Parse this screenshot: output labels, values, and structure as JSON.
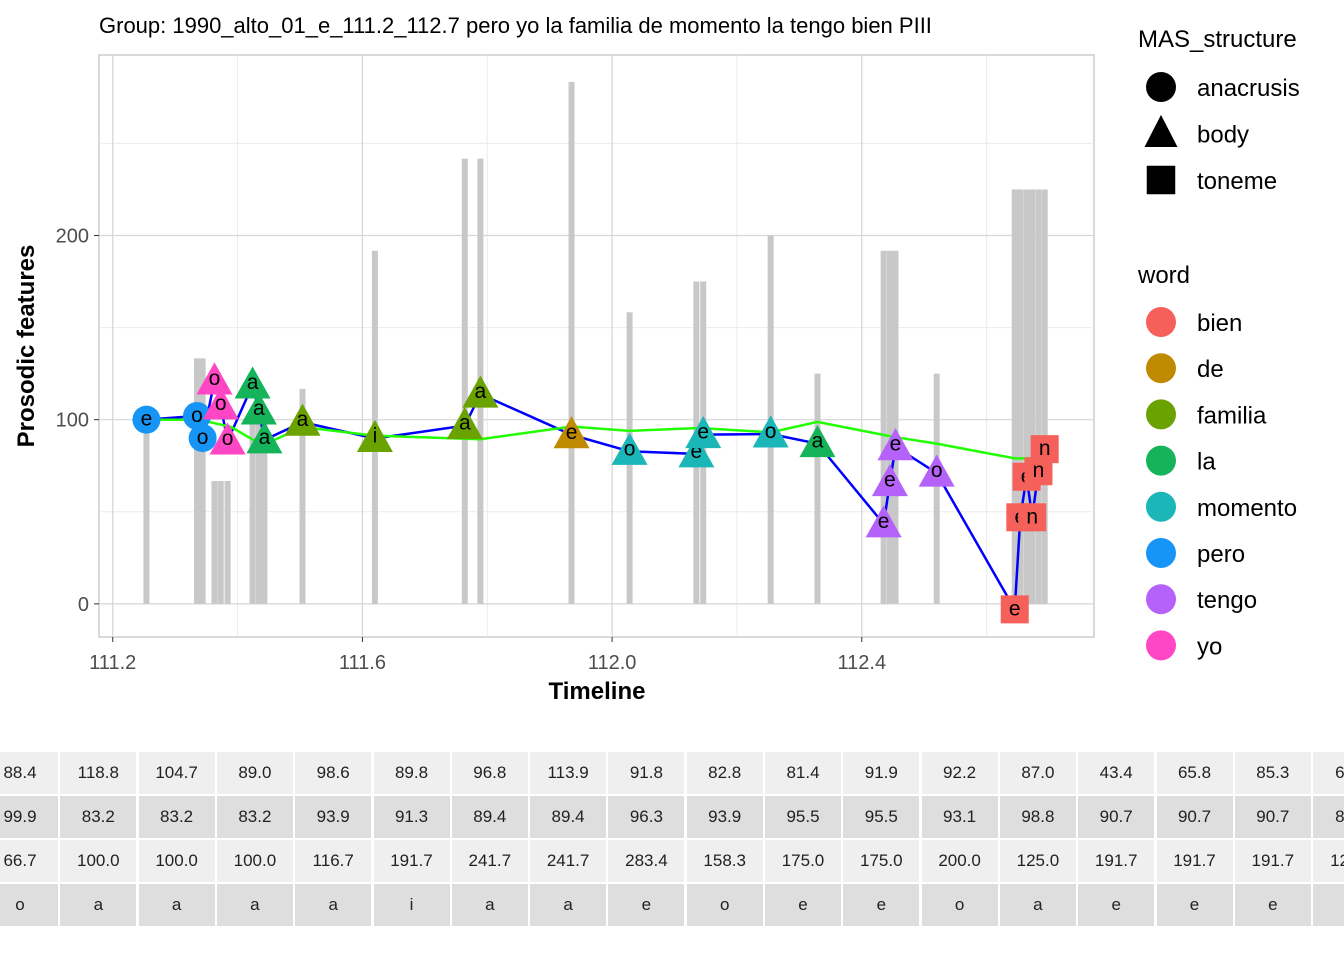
{
  "chart_data": {
    "type": "scatter",
    "title": "Group: 1990_alto_01_e_111.2_112.7 pero yo la familia de momento la tengo bien PIII",
    "xlabel": "Timeline",
    "ylabel": "Prosodic features",
    "xlim": [
      111.178,
      112.772
    ],
    "ylim": [
      -18,
      298
    ],
    "x_ticks": [
      "111.2",
      "111.6",
      "112.0",
      "112.4"
    ],
    "x_tick_values": [
      111.2,
      111.6,
      112.0,
      112.4
    ],
    "y_ticks": [
      "0",
      "100",
      "200"
    ],
    "y_tick_values": [
      0,
      100,
      200
    ],
    "grid": true,
    "legend_position": "right",
    "legend_shape": {
      "title": "MAS_structure",
      "entries": [
        {
          "label": "anacrusis",
          "shape": "circle"
        },
        {
          "label": "body",
          "shape": "triangle"
        },
        {
          "label": "toneme",
          "shape": "square"
        }
      ]
    },
    "legend_color": {
      "title": "word",
      "entries": [
        {
          "label": "bien",
          "color": "#F5605A"
        },
        {
          "label": "de",
          "color": "#C08A00"
        },
        {
          "label": "familia",
          "color": "#6AA300"
        },
        {
          "label": "la",
          "color": "#16B45A"
        },
        {
          "label": "momento",
          "color": "#1BB6B8"
        },
        {
          "label": "pero",
          "color": "#1795F6"
        },
        {
          "label": "tengo",
          "color": "#B462FA"
        },
        {
          "label": "yo",
          "color": "#FF47C6"
        }
      ]
    },
    "points": [
      {
        "x": 111.254,
        "y": 100.0,
        "shape": "circle",
        "word": "pero",
        "label": "e"
      },
      {
        "x": 111.335,
        "y": 102.0,
        "shape": "circle",
        "word": "pero",
        "label": "o"
      },
      {
        "x": 111.344,
        "y": 90.0,
        "shape": "circle",
        "word": "pero",
        "label": "o"
      },
      {
        "x": 111.363,
        "y": 121.0,
        "shape": "triangle",
        "word": "yo",
        "label": "o"
      },
      {
        "x": 111.373,
        "y": 107.5,
        "shape": "triangle",
        "word": "yo",
        "label": "o"
      },
      {
        "x": 111.384,
        "y": 88.4,
        "shape": "triangle",
        "word": "yo",
        "label": "o"
      },
      {
        "x": 111.424,
        "y": 118.8,
        "shape": "triangle",
        "word": "la",
        "label": "a"
      },
      {
        "x": 111.434,
        "y": 104.7,
        "shape": "triangle",
        "word": "la",
        "label": "a"
      },
      {
        "x": 111.443,
        "y": 89.0,
        "shape": "triangle",
        "word": "la",
        "label": "a"
      },
      {
        "x": 111.504,
        "y": 98.6,
        "shape": "triangle",
        "word": "familia",
        "label": "a"
      },
      {
        "x": 111.62,
        "y": 89.8,
        "shape": "triangle",
        "word": "familia",
        "label": "i"
      },
      {
        "x": 111.764,
        "y": 96.8,
        "shape": "triangle",
        "word": "familia",
        "label": "a"
      },
      {
        "x": 111.789,
        "y": 113.9,
        "shape": "triangle",
        "word": "familia",
        "label": "a"
      },
      {
        "x": 111.935,
        "y": 91.8,
        "shape": "triangle",
        "word": "de",
        "label": "e"
      },
      {
        "x": 112.028,
        "y": 82.8,
        "shape": "triangle",
        "word": "momento",
        "label": "o"
      },
      {
        "x": 112.135,
        "y": 81.4,
        "shape": "triangle",
        "word": "momento",
        "label": "e"
      },
      {
        "x": 112.146,
        "y": 91.9,
        "shape": "triangle",
        "word": "momento",
        "label": "e"
      },
      {
        "x": 112.254,
        "y": 92.2,
        "shape": "triangle",
        "word": "momento",
        "label": "o"
      },
      {
        "x": 112.329,
        "y": 87.0,
        "shape": "triangle",
        "word": "la",
        "label": "a"
      },
      {
        "x": 112.435,
        "y": 43.4,
        "shape": "triangle",
        "word": "tengo",
        "label": "e"
      },
      {
        "x": 112.445,
        "y": 65.8,
        "shape": "triangle",
        "word": "tengo",
        "label": "e"
      },
      {
        "x": 112.454,
        "y": 85.3,
        "shape": "triangle",
        "word": "tengo",
        "label": "e"
      },
      {
        "x": 112.52,
        "y": 71.0,
        "shape": "triangle",
        "word": "tengo",
        "label": "o"
      },
      {
        "x": 112.645,
        "y": -3.0,
        "shape": "square",
        "word": "bien",
        "label": "e"
      },
      {
        "x": 112.654,
        "y": 47.0,
        "shape": "square",
        "word": "bien",
        "label": "e"
      },
      {
        "x": 112.664,
        "y": 69.0,
        "shape": "square",
        "word": "bien",
        "label": "e"
      },
      {
        "x": 112.673,
        "y": 47.0,
        "shape": "square",
        "word": "bien",
        "label": "n"
      },
      {
        "x": 112.683,
        "y": 72.0,
        "shape": "square",
        "word": "bien",
        "label": "n"
      },
      {
        "x": 112.693,
        "y": 84.0,
        "shape": "square",
        "word": "bien",
        "label": "n"
      }
    ],
    "blue_line_color": "#0000FF",
    "green_line_color": "#22FF00",
    "green_line": [
      {
        "x": 111.254,
        "y": 100
      },
      {
        "x": 111.34,
        "y": 99.9
      },
      {
        "x": 111.39,
        "y": 96
      },
      {
        "x": 111.44,
        "y": 86
      },
      {
        "x": 111.504,
        "y": 96
      },
      {
        "x": 111.62,
        "y": 91.3
      },
      {
        "x": 111.789,
        "y": 89.4
      },
      {
        "x": 111.935,
        "y": 96.3
      },
      {
        "x": 112.028,
        "y": 93.9
      },
      {
        "x": 112.14,
        "y": 95.5
      },
      {
        "x": 112.254,
        "y": 93.1
      },
      {
        "x": 112.329,
        "y": 98.8
      },
      {
        "x": 112.45,
        "y": 90.7
      },
      {
        "x": 112.52,
        "y": 87
      },
      {
        "x": 112.645,
        "y": 79
      },
      {
        "x": 112.675,
        "y": 79
      }
    ],
    "bars": [
      {
        "x": 111.254,
        "h": 100.0
      },
      {
        "x": 111.335,
        "h": 133.3
      },
      {
        "x": 111.344,
        "h": 133.3
      },
      {
        "x": 111.363,
        "h": 66.7
      },
      {
        "x": 111.373,
        "h": 66.7
      },
      {
        "x": 111.384,
        "h": 66.7
      },
      {
        "x": 111.424,
        "h": 100.0
      },
      {
        "x": 111.434,
        "h": 100.0
      },
      {
        "x": 111.443,
        "h": 100.0
      },
      {
        "x": 111.504,
        "h": 116.7
      },
      {
        "x": 111.62,
        "h": 191.7
      },
      {
        "x": 111.764,
        "h": 241.7
      },
      {
        "x": 111.789,
        "h": 241.7
      },
      {
        "x": 111.935,
        "h": 283.4
      },
      {
        "x": 112.028,
        "h": 158.3
      },
      {
        "x": 112.135,
        "h": 175.0
      },
      {
        "x": 112.146,
        "h": 175.0
      },
      {
        "x": 112.254,
        "h": 200.0
      },
      {
        "x": 112.329,
        "h": 125.0
      },
      {
        "x": 112.435,
        "h": 191.7
      },
      {
        "x": 112.445,
        "h": 191.7
      },
      {
        "x": 112.454,
        "h": 191.7
      },
      {
        "x": 112.52,
        "h": 125.0
      },
      {
        "x": 112.645,
        "h": 225.0
      },
      {
        "x": 112.654,
        "h": 225.0
      },
      {
        "x": 112.664,
        "h": 225.0
      },
      {
        "x": 112.673,
        "h": 225.0
      },
      {
        "x": 112.683,
        "h": 225.0
      },
      {
        "x": 112.693,
        "h": 225.0
      }
    ]
  },
  "table": {
    "rows": [
      [
        "88.4",
        "118.8",
        "104.7",
        "89.0",
        "98.6",
        "89.8",
        "96.8",
        "113.9",
        "91.8",
        "82.8",
        "81.4",
        "91.9",
        "92.2",
        "87.0",
        "43.4",
        "65.8",
        "85.3",
        "6"
      ],
      [
        "99.9",
        "83.2",
        "83.2",
        "83.2",
        "93.9",
        "91.3",
        "89.4",
        "89.4",
        "96.3",
        "93.9",
        "95.5",
        "95.5",
        "93.1",
        "98.8",
        "90.7",
        "90.7",
        "90.7",
        "8"
      ],
      [
        "66.7",
        "100.0",
        "100.0",
        "100.0",
        "116.7",
        "191.7",
        "241.7",
        "241.7",
        "283.4",
        "158.3",
        "175.0",
        "175.0",
        "200.0",
        "125.0",
        "191.7",
        "191.7",
        "191.7",
        "12"
      ],
      [
        "o",
        "a",
        "a",
        "a",
        "a",
        "i",
        "a",
        "a",
        "e",
        "o",
        "e",
        "e",
        "o",
        "a",
        "e",
        "e",
        "e",
        ""
      ]
    ]
  }
}
